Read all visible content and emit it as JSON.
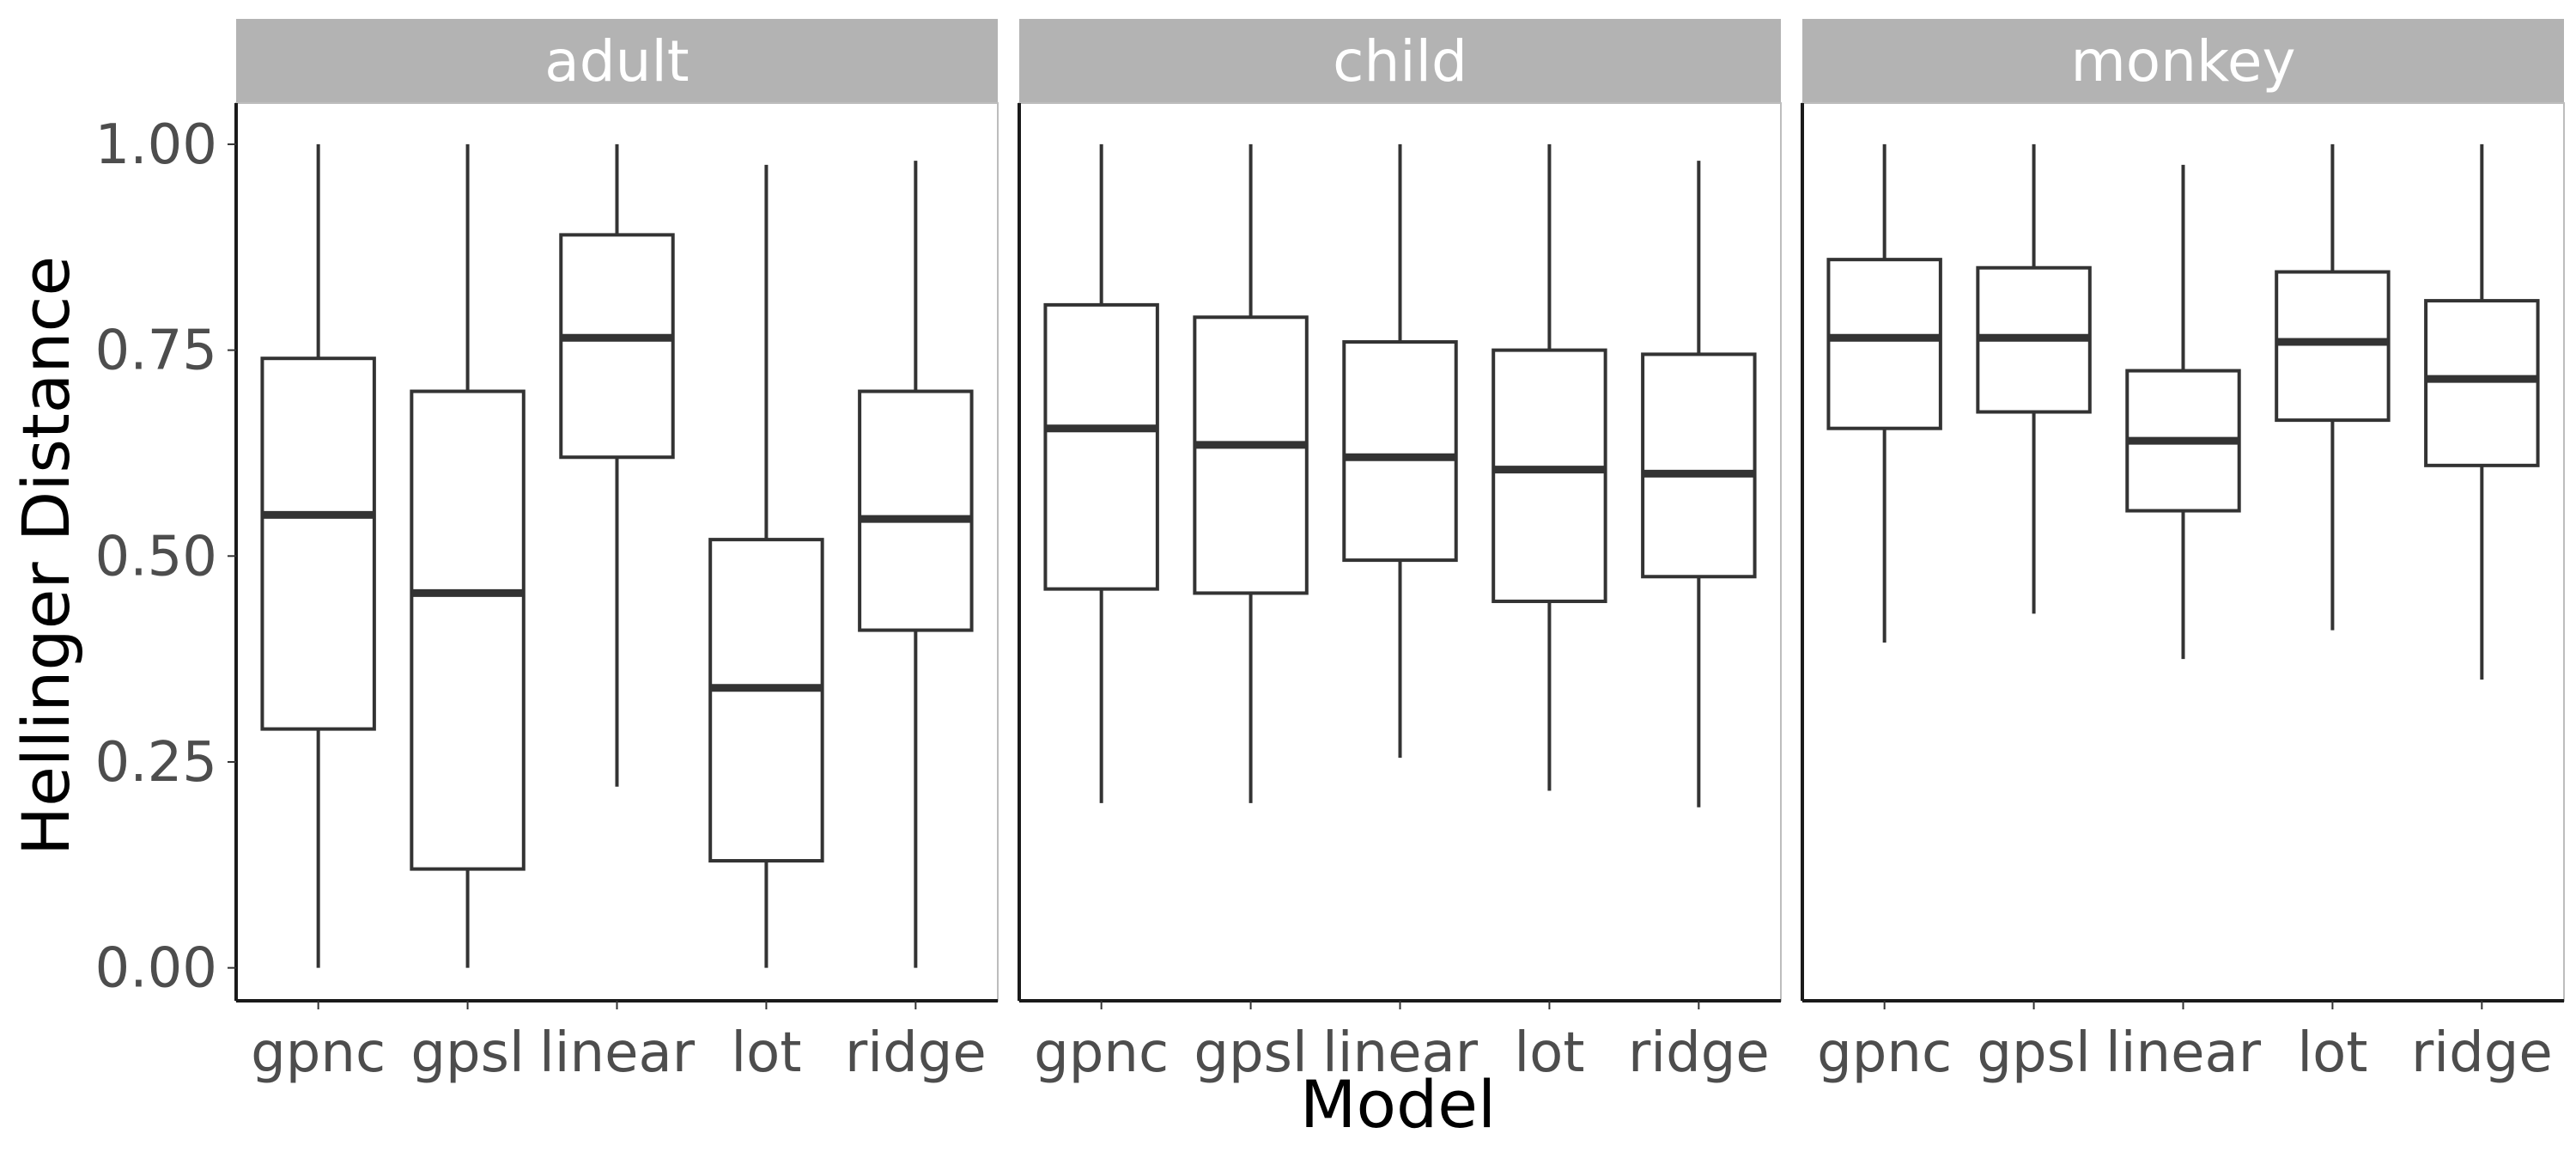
{
  "chart_data": {
    "type": "boxplot",
    "xlabel": "Model",
    "ylabel": "Hellinger Distance",
    "ylim": [
      -0.04,
      1.05
    ],
    "yticks": [
      0.0,
      0.25,
      0.5,
      0.75,
      1.0
    ],
    "ytick_labels": [
      "0.00",
      "0.25",
      "0.50",
      "0.75",
      "1.00"
    ],
    "categories": [
      "gpnc",
      "gpsl",
      "linear",
      "lot",
      "ridge"
    ],
    "grid": false,
    "legend": "none",
    "colors": {
      "box_stroke": "#333333",
      "strip": "#b3b3b3",
      "strip_text": "#ffffff"
    },
    "panels": [
      {
        "name": "adult",
        "boxes": [
          {
            "category": "gpnc",
            "min": 0.0,
            "q1": 0.29,
            "median": 0.55,
            "q3": 0.74,
            "max": 1.0
          },
          {
            "category": "gpsl",
            "min": 0.0,
            "q1": 0.12,
            "median": 0.455,
            "q3": 0.7,
            "max": 1.0
          },
          {
            "category": "linear",
            "min": 0.22,
            "q1": 0.62,
            "median": 0.765,
            "q3": 0.89,
            "max": 1.0
          },
          {
            "category": "lot",
            "min": 0.0,
            "q1": 0.13,
            "median": 0.34,
            "q3": 0.52,
            "max": 0.975
          },
          {
            "category": "ridge",
            "min": 0.0,
            "q1": 0.41,
            "median": 0.545,
            "q3": 0.7,
            "max": 0.98
          }
        ]
      },
      {
        "name": "child",
        "boxes": [
          {
            "category": "gpnc",
            "min": 0.2,
            "q1": 0.46,
            "median": 0.655,
            "q3": 0.805,
            "max": 1.0
          },
          {
            "category": "gpsl",
            "min": 0.2,
            "q1": 0.455,
            "median": 0.635,
            "q3": 0.79,
            "max": 1.0
          },
          {
            "category": "linear",
            "min": 0.255,
            "q1": 0.495,
            "median": 0.62,
            "q3": 0.76,
            "max": 1.0
          },
          {
            "category": "lot",
            "min": 0.215,
            "q1": 0.445,
            "median": 0.605,
            "q3": 0.75,
            "max": 1.0
          },
          {
            "category": "ridge",
            "min": 0.195,
            "q1": 0.475,
            "median": 0.6,
            "q3": 0.745,
            "max": 0.98
          }
        ]
      },
      {
        "name": "monkey",
        "boxes": [
          {
            "category": "gpnc",
            "min": 0.395,
            "q1": 0.655,
            "median": 0.765,
            "q3": 0.86,
            "max": 1.0
          },
          {
            "category": "gpsl",
            "min": 0.43,
            "q1": 0.675,
            "median": 0.765,
            "q3": 0.85,
            "max": 1.0
          },
          {
            "category": "linear",
            "min": 0.375,
            "q1": 0.555,
            "median": 0.64,
            "q3": 0.725,
            "max": 0.975
          },
          {
            "category": "lot",
            "min": 0.41,
            "q1": 0.665,
            "median": 0.76,
            "q3": 0.845,
            "max": 1.0
          },
          {
            "category": "ridge",
            "min": 0.35,
            "q1": 0.61,
            "median": 0.715,
            "q3": 0.81,
            "max": 1.0
          }
        ]
      }
    ]
  }
}
